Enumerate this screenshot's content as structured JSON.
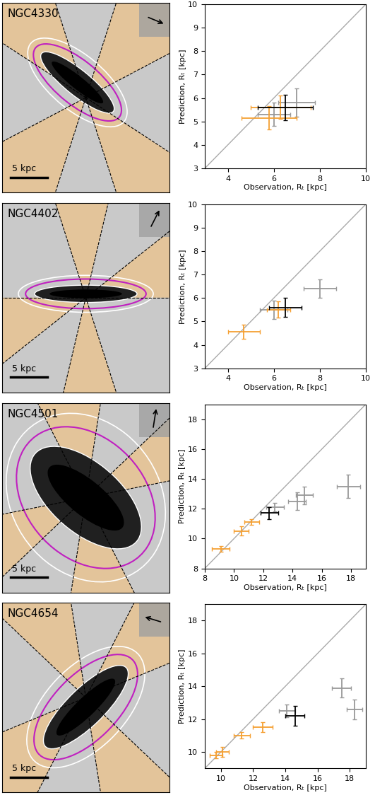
{
  "chart_data": [
    {
      "type": "image",
      "title": "NGC4330",
      "annotations": [
        "5 kpc"
      ],
      "tick_labels": false
    },
    {
      "type": "errorbar",
      "xlabel": "Observation, Rₜ [kpc]",
      "ylabel": "Prediction, Rₜ [kpc]",
      "xlim": [
        3,
        10
      ],
      "ylim": [
        3,
        10
      ],
      "xticks": [
        4,
        6,
        8,
        10
      ],
      "yticks": [
        3,
        4,
        5,
        6,
        7,
        8,
        9,
        10
      ],
      "series": [
        {
          "color": "#999999",
          "x": [
            7.0,
            6.0
          ],
          "values": [
            5.8,
            5.3
          ],
          "xerr": [
            0.8,
            0.7
          ],
          "yerr": [
            0.6,
            0.5
          ]
        },
        {
          "color": "#f5a033",
          "x": [
            6.3,
            5.8
          ],
          "values": [
            5.6,
            5.15
          ],
          "xerr": [
            1.3,
            1.2
          ],
          "yerr": [
            0.5,
            0.5
          ]
        },
        {
          "color": "#000000",
          "x": [
            6.5
          ],
          "values": [
            5.6
          ],
          "xerr": [
            1.2
          ],
          "yerr": [
            0.55
          ]
        }
      ]
    },
    {
      "type": "image",
      "title": "NGC4402",
      "annotations": [
        "5 kpc"
      ],
      "tick_labels": false
    },
    {
      "type": "errorbar",
      "xlabel": "Observation, Rₜ [kpc]",
      "ylabel": "Prediction, Rₜ [kpc]",
      "xlim": [
        3,
        10
      ],
      "ylim": [
        3,
        10
      ],
      "xticks": [
        4,
        6,
        8,
        10
      ],
      "yticks": [
        3,
        4,
        5,
        6,
        7,
        8,
        9,
        10
      ],
      "series": [
        {
          "color": "#999999",
          "x": [
            6.0,
            8.0
          ],
          "values": [
            5.5,
            6.4
          ],
          "xerr": [
            0.6,
            0.7
          ],
          "yerr": [
            0.4,
            0.4
          ]
        },
        {
          "color": "#f5a033",
          "x": [
            4.7,
            6.2
          ],
          "values": [
            4.55,
            5.5
          ],
          "xerr": [
            0.7,
            0.5
          ],
          "yerr": [
            0.3,
            0.35
          ]
        },
        {
          "color": "#000000",
          "x": [
            6.5
          ],
          "values": [
            5.6
          ],
          "xerr": [
            0.7
          ],
          "yerr": [
            0.4
          ]
        }
      ]
    },
    {
      "type": "image",
      "title": "NGC4501",
      "annotations": [
        "5 kpc"
      ],
      "tick_labels": false
    },
    {
      "type": "errorbar",
      "xlabel": "Observation, Rₜ [kpc]",
      "ylabel": "Prediction, Rₜ [kpc]",
      "xlim": [
        8,
        19
      ],
      "ylim": [
        8,
        19
      ],
      "xticks": [
        8,
        10,
        12,
        14,
        16,
        18
      ],
      "yticks": [
        8,
        10,
        12,
        14,
        16,
        18
      ],
      "series": [
        {
          "color": "#999999",
          "x": [
            12.8,
            14.3,
            14.8,
            17.8
          ],
          "values": [
            12.1,
            12.5,
            12.9,
            13.5
          ],
          "xerr": [
            0.6,
            0.6,
            0.6,
            0.8
          ],
          "yerr": [
            0.3,
            0.6,
            0.6,
            0.8
          ]
        },
        {
          "color": "#f5a033",
          "x": [
            9.1,
            10.5,
            11.2
          ],
          "values": [
            9.3,
            10.5,
            11.1
          ],
          "xerr": [
            0.6,
            0.5,
            0.5
          ],
          "yerr": [
            0.2,
            0.3,
            0.2
          ]
        },
        {
          "color": "#000000",
          "x": [
            12.4
          ],
          "values": [
            11.7
          ],
          "xerr": [
            0.6
          ],
          "yerr": [
            0.4
          ]
        }
      ]
    },
    {
      "type": "image",
      "title": "NGC4654",
      "annotations": [
        "5 kpc"
      ],
      "tick_labels": false
    },
    {
      "type": "errorbar",
      "xlabel": "Observation, Rₜ [kpc]",
      "ylabel": "Prediction, Rₜ [kpc]",
      "xlim": [
        9,
        19
      ],
      "ylim": [
        9,
        19
      ],
      "xticks": [
        10,
        12,
        14,
        16,
        18
      ],
      "yticks": [
        10,
        12,
        14,
        16,
        18
      ],
      "series": [
        {
          "color": "#999999",
          "x": [
            14.1,
            17.5,
            18.3
          ],
          "values": [
            12.5,
            13.9,
            12.6
          ],
          "xerr": [
            0.5,
            0.6,
            0.5
          ],
          "yerr": [
            0.4,
            0.6,
            0.6
          ]
        },
        {
          "color": "#f5a033",
          "x": [
            9.7,
            10.1,
            11.3,
            12.6
          ],
          "values": [
            9.8,
            10.0,
            11.0,
            11.5
          ],
          "xerr": [
            0.4,
            0.4,
            0.5,
            0.6
          ],
          "yerr": [
            0.2,
            0.3,
            0.2,
            0.3
          ]
        },
        {
          "color": "#000000",
          "x": [
            14.6
          ],
          "values": [
            12.2
          ],
          "xerr": [
            0.6
          ],
          "yerr": [
            0.6
          ]
        }
      ]
    }
  ]
}
